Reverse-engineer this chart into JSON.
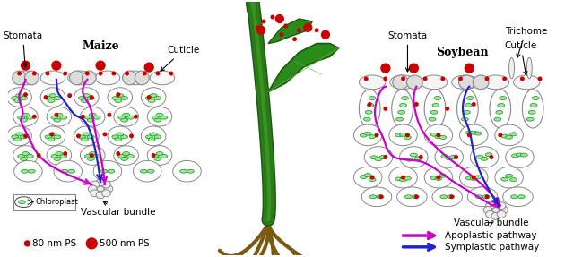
{
  "title_maize": "Maize",
  "title_soybean": "Soybean",
  "label_stomata_left": "Stomata",
  "label_cuticle_left": "Cuticle",
  "label_vascular_left": "Vascular bundle",
  "label_chloroplast": "Chloroplast",
  "label_stomata_right": "Stomata",
  "label_trichome": "Trichome",
  "label_cuticle_right": "Cuticle",
  "label_vascular_right": "Vascular bundle",
  "label_80nm": "80 nm PS",
  "label_500nm": "500 nm PS",
  "label_apoplastic": "Apoplastic pathway",
  "label_symplastic": "Symplastic pathway",
  "color_cell_fill": "#ffffff",
  "color_cell_edge": "#888888",
  "color_chloroplast_fill": "#90EE90",
  "color_chloroplast_edge": "#228B22",
  "color_magenta": "#CC00CC",
  "color_blue_dark": "#2222CC",
  "color_red": "#CC0000",
  "color_green_plant": "#2a7a1a",
  "color_green_stem": "#3a8a2a",
  "color_brown_root": "#7a5a10",
  "color_background": "#ffffff",
  "color_guard_cell": "#dddddd",
  "color_epi_top": "#f0f0f0"
}
